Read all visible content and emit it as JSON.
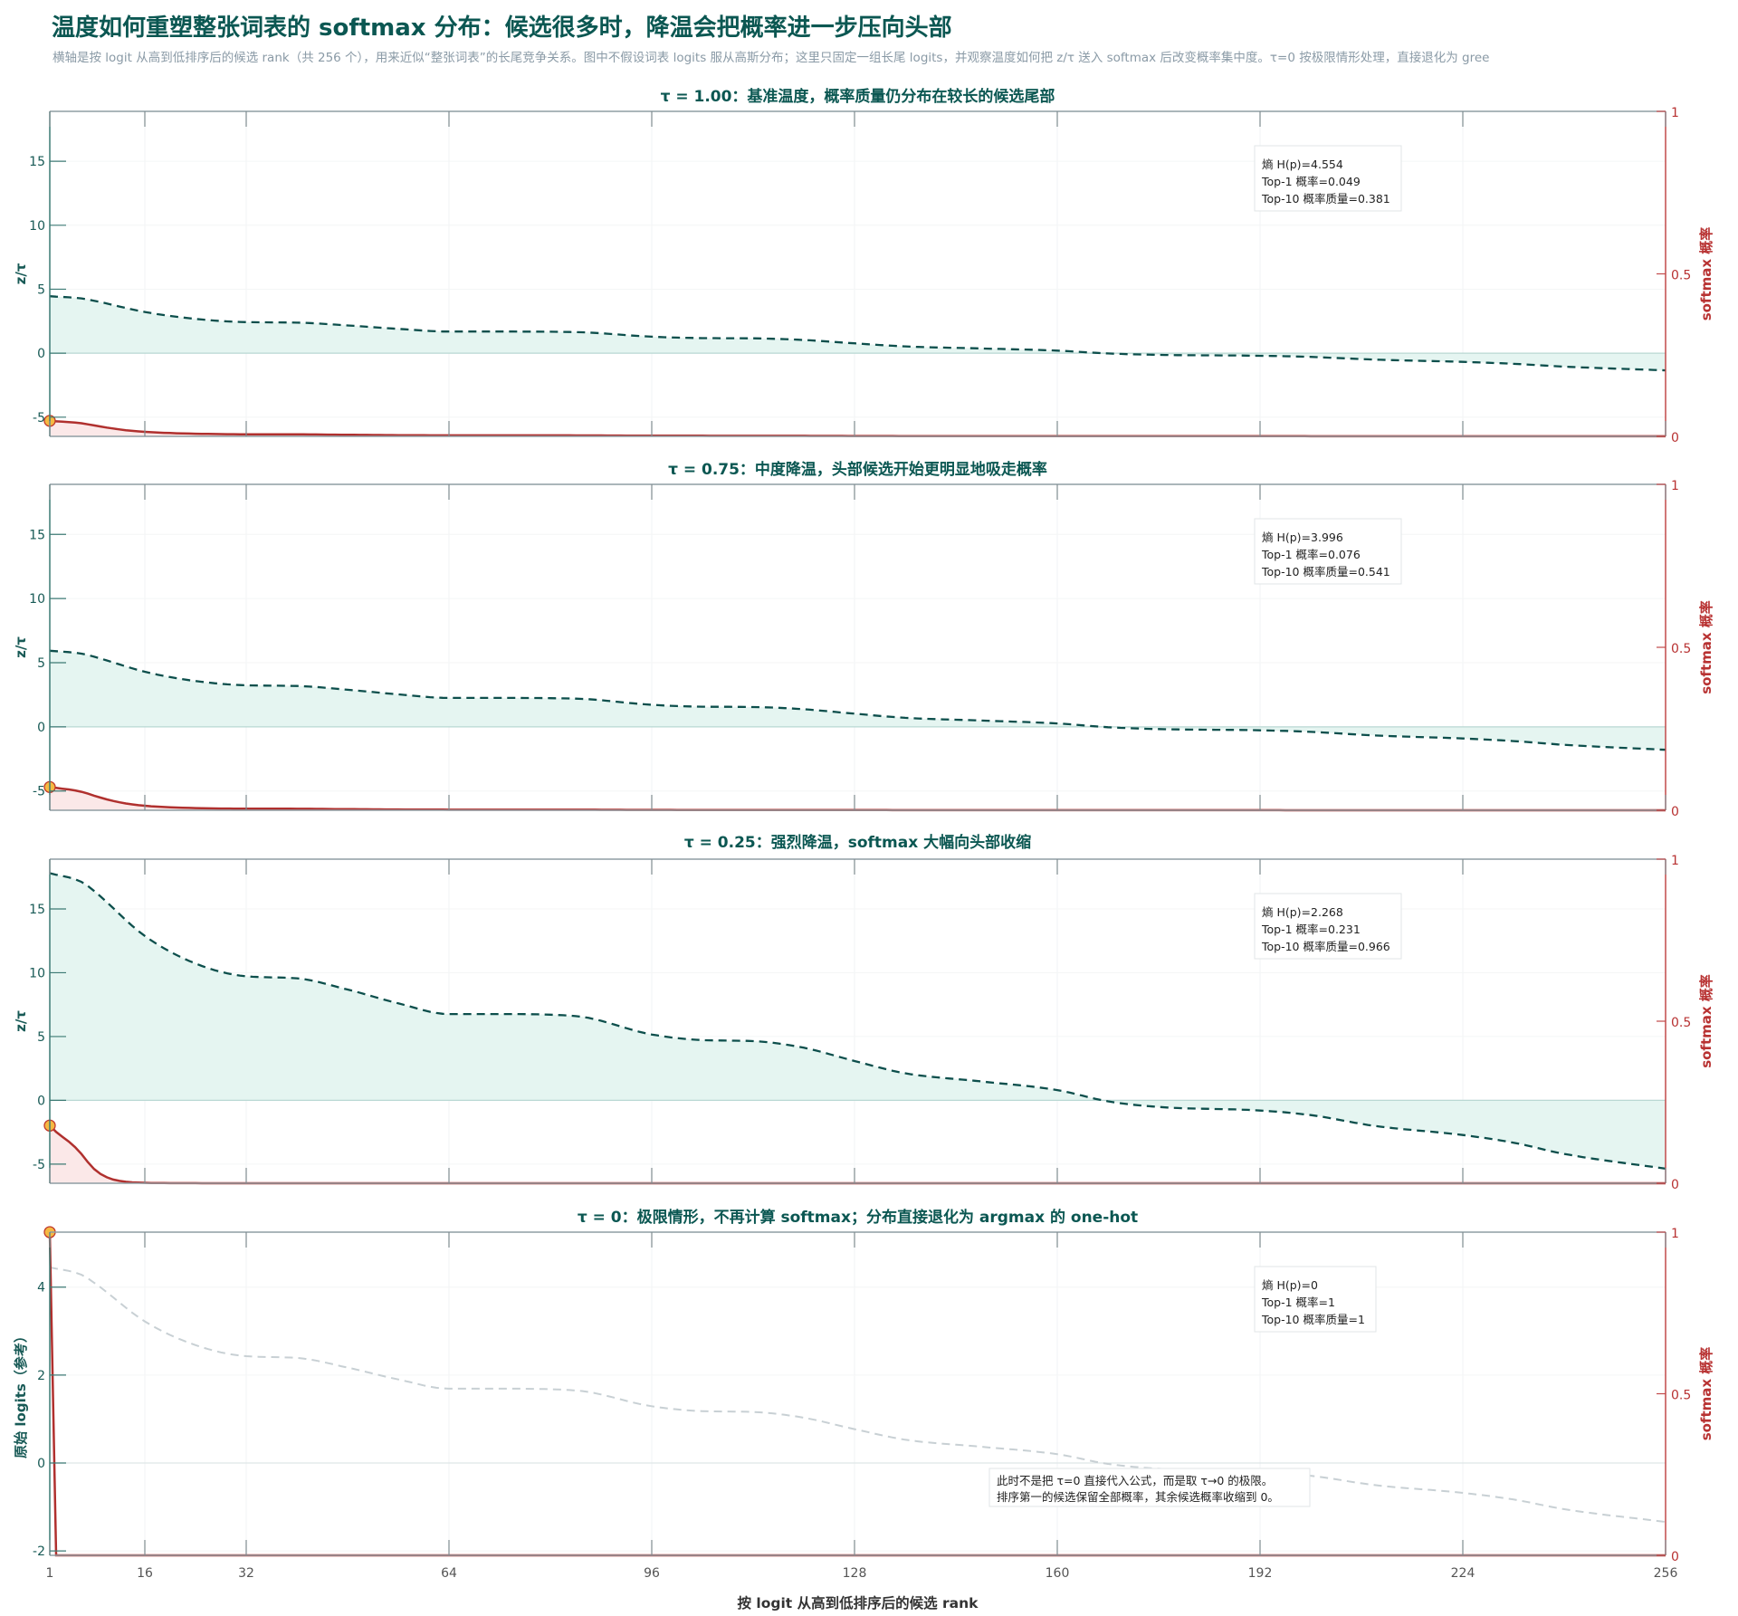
{
  "header": {
    "title": "温度如何重塑整张词表的 softmax 分布：候选很多时，降温会把概率进一步压向头部",
    "subtitle": "横轴是按 logit 从高到低排序后的候选 rank（共 256 个），用来近似“整张词表”的长尾竞争关系。图中不假设词表 logits 服从高斯分布；这里只固定一组长尾 logits，并观察温度如何把 z/τ 送入 softmax 后改变概率集中度。τ=0 按极限情形处理，直接退化为 gree"
  },
  "colors": {
    "title": "#0b5752",
    "logit_line": "#0d4f4c",
    "logit_fill": "#e5f5f1",
    "reference_line": "#c8d0d4",
    "softmax_line": "#b0302e",
    "softmax_fill": "#fbe8e8",
    "right_axis": "#c24a4a",
    "marker_fill": "#f5b942"
  },
  "chart_data": {
    "type": "line",
    "x_label": "按 logit 从高到低排序后的候选 rank",
    "x_range": [
      1,
      256
    ],
    "x_ticks": [
      1,
      16,
      32,
      64,
      96,
      128,
      160,
      192,
      224,
      256
    ],
    "grid": true,
    "logits": {
      "rank": [
        1,
        6,
        8,
        16,
        24,
        32,
        40,
        48,
        56,
        64,
        72,
        84,
        96,
        104,
        112,
        120,
        128,
        136,
        148,
        160,
        168,
        176,
        192,
        200,
        210,
        224,
        232,
        240,
        256
      ],
      "value": [
        4.45,
        4.28,
        4.1,
        3.22,
        2.68,
        2.43,
        2.39,
        2.17,
        1.9,
        1.69,
        1.69,
        1.65,
        1.29,
        1.18,
        1.16,
        1.03,
        0.77,
        0.53,
        0.37,
        0.2,
        -0.02,
        -0.13,
        -0.2,
        -0.29,
        -0.5,
        -0.68,
        -0.83,
        -1.05,
        -1.34
      ]
    },
    "panels": [
      {
        "title": "τ = 1.00：基准温度，概率质量仍分布在较长的候选尾部",
        "tau": 1.0,
        "left_label": "z/τ",
        "left_range": [
          -6.5,
          18.9
        ],
        "left_ticks": [
          -5,
          0,
          5,
          10,
          15
        ],
        "right_label": "softmax 概率",
        "right_range": [
          0,
          1
        ],
        "right_ticks": [
          0,
          0.5,
          1
        ],
        "stats": [
          "熵 H(p)=4.554",
          "Top-1 概率=0.049",
          "Top-10 概率质量=0.381"
        ]
      },
      {
        "title": "τ = 0.75：中度降温，头部候选开始更明显地吸走概率",
        "tau": 0.75,
        "left_label": "z/τ",
        "left_range": [
          -6.5,
          18.9
        ],
        "left_ticks": [
          -5,
          0,
          5,
          10,
          15
        ],
        "right_label": "softmax 概率",
        "right_range": [
          0,
          1
        ],
        "right_ticks": [
          0,
          0.5,
          1
        ],
        "stats": [
          "熵 H(p)=3.996",
          "Top-1 概率=0.076",
          "Top-10 概率质量=0.541"
        ]
      },
      {
        "title": "τ = 0.25：强烈降温，softmax 大幅向头部收缩",
        "tau": 0.25,
        "left_label": "z/τ",
        "left_range": [
          -6.5,
          18.9
        ],
        "left_ticks": [
          -5,
          0,
          5,
          10,
          15
        ],
        "right_label": "softmax 概率",
        "right_range": [
          0,
          1
        ],
        "right_ticks": [
          0,
          0.5,
          1
        ],
        "stats": [
          "熵 H(p)=2.268",
          "Top-1 概率=0.231",
          "Top-10 概率质量=0.966"
        ]
      },
      {
        "title": "τ = 0：极限情形，不再计算 softmax；分布直接退化为 argmax 的 one-hot",
        "tau": 0,
        "left_label": "原始 logits（参考）",
        "left_range": [
          -2.1,
          5.25
        ],
        "left_ticks": [
          -2,
          0,
          2,
          4
        ],
        "right_label": "softmax 概率",
        "right_range": [
          0,
          1
        ],
        "right_ticks": [
          0,
          0.5,
          1
        ],
        "stats": [
          "熵 H(p)=0",
          "Top-1 概率=1",
          "Top-10 概率质量=1"
        ],
        "note": [
          "此时不是把 τ=0 直接代入公式，而是取 τ→0 的极限。",
          "排序第一的候选保留全部概率，其余候选概率收缩到 0。"
        ]
      }
    ]
  }
}
